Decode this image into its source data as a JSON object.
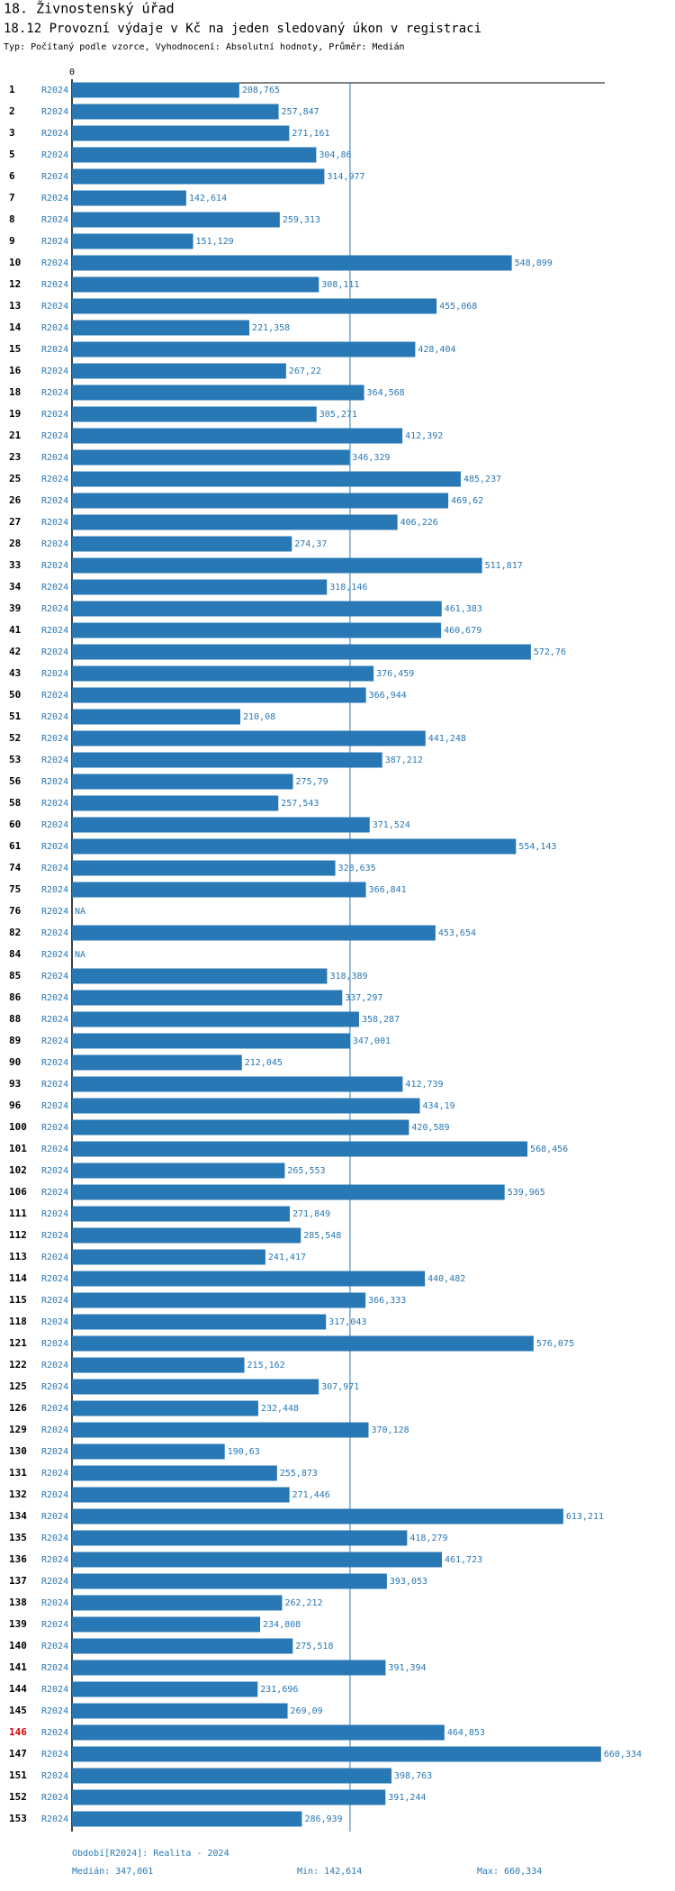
{
  "chart_data": {
    "type": "hbar",
    "title": "18. Živnostenský úřad",
    "subtitle": "18.12 Provozní výdaje v Kč na jeden sledovaný úkon v registraci",
    "description": "Typ: Počítaný podle vzorce, Vyhodnocení: Absolutní hodnoty, Průměr: Medián",
    "categories": [
      "1",
      "2",
      "3",
      "5",
      "6",
      "7",
      "8",
      "9",
      "10",
      "12",
      "13",
      "14",
      "15",
      "16",
      "18",
      "19",
      "21",
      "23",
      "25",
      "26",
      "27",
      "28",
      "33",
      "34",
      "39",
      "41",
      "42",
      "43",
      "50",
      "51",
      "52",
      "53",
      "56",
      "58",
      "60",
      "61",
      "74",
      "75",
      "76",
      "82",
      "84",
      "85",
      "86",
      "88",
      "89",
      "90",
      "93",
      "96",
      "100",
      "101",
      "102",
      "106",
      "111",
      "112",
      "113",
      "114",
      "115",
      "118",
      "121",
      "122",
      "125",
      "126",
      "129",
      "130",
      "131",
      "132",
      "134",
      "135",
      "136",
      "137",
      "138",
      "139",
      "140",
      "141",
      "144",
      "145",
      "146",
      "147",
      "151",
      "152",
      "153"
    ],
    "series": [
      {
        "name": "R2024",
        "color": "#2878b5",
        "values": [
          208.765,
          257.847,
          271.161,
          304.86,
          314.977,
          142.614,
          259.313,
          151.129,
          548.899,
          308.111,
          455.068,
          221.358,
          428.404,
          267.22,
          364.568,
          305.271,
          412.392,
          346.329,
          485.237,
          469.62,
          406.226,
          274.37,
          511.817,
          318.146,
          461.383,
          460.679,
          572.76,
          376.459,
          366.944,
          210.08,
          441.248,
          387.212,
          275.79,
          257.543,
          371.524,
          554.143,
          328.635,
          366.841,
          null,
          453.654,
          null,
          318.389,
          337.297,
          358.287,
          347.001,
          212.045,
          412.739,
          434.19,
          420.589,
          568.456,
          265.553,
          539.965,
          271.849,
          285.548,
          241.417,
          440.482,
          366.333,
          317.043,
          576.075,
          215.162,
          307.971,
          232.448,
          370.128,
          190.63,
          255.873,
          271.446,
          613.211,
          418.279,
          461.723,
          393.053,
          262.212,
          234.808,
          275.518,
          391.394,
          231.696,
          269.09,
          464.853,
          660.334,
          398.763,
          391.244,
          286.939
        ],
        "value_labels": [
          "208,765",
          "257,847",
          "271,161",
          "304,86",
          "314,977",
          "142,614",
          "259,313",
          "151,129",
          "548,899",
          "308,111",
          "455,068",
          "221,358",
          "428,404",
          "267,22",
          "364,568",
          "305,271",
          "412,392",
          "346,329",
          "485,237",
          "469,62",
          "406,226",
          "274,37",
          "511,817",
          "318,146",
          "461,383",
          "460,679",
          "572,76",
          "376,459",
          "366,944",
          "210,08",
          "441,248",
          "387,212",
          "275,79",
          "257,543",
          "371,524",
          "554,143",
          "328,635",
          "366,841",
          "NA",
          "453,654",
          "NA",
          "318,389",
          "337,297",
          "358,287",
          "347,001",
          "212,045",
          "412,739",
          "434,19",
          "420,589",
          "568,456",
          "265,553",
          "539,965",
          "271,849",
          "285,548",
          "241,417",
          "440,482",
          "366,333",
          "317,043",
          "576,075",
          "215,162",
          "307,971",
          "232,448",
          "370,128",
          "190,63",
          "255,873",
          "271,446",
          "613,211",
          "418,279",
          "461,723",
          "393,053",
          "262,212",
          "234,808",
          "275,518",
          "391,394",
          "231,696",
          "269,09",
          "464,853",
          "660,334",
          "398,763",
          "391,244",
          "286,939"
        ]
      }
    ],
    "xlim": [
      0,
      665
    ],
    "xticks": [
      0
    ],
    "median": 347.001,
    "median_color": "#2878b5",
    "highlight_index": 76,
    "highlight_color": "#e00000",
    "footer": {
      "period": "Období[R2024]: Realita - 2024",
      "median": "Medián: 347,001",
      "min": "Min: 142,614",
      "max": "Max: 660,334"
    }
  }
}
